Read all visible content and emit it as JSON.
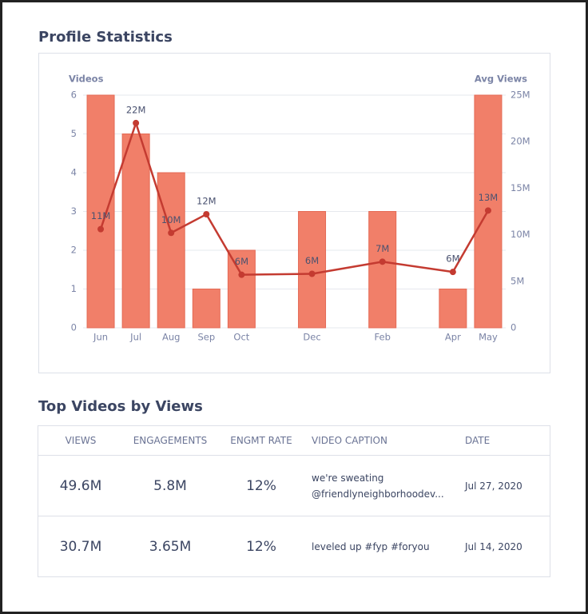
{
  "header": {
    "title": "Profile Statistics"
  },
  "chart_data": {
    "type": "bar-line",
    "y_label": "Videos",
    "y2_label": "Avg Views",
    "categories": [
      "Jun",
      "Jul",
      "Aug",
      "Sep",
      "Oct",
      null,
      "Dec",
      null,
      "Feb",
      null,
      "Apr",
      "May"
    ],
    "series": [
      {
        "type": "bar",
        "color": "#f17f69",
        "values": [
          6,
          5,
          4,
          1,
          2,
          null,
          3,
          null,
          3,
          null,
          1,
          6
        ]
      },
      {
        "type": "line",
        "axis": "y2",
        "color": "#c43b31",
        "values": [
          10600000,
          22000000,
          10200000,
          12200000,
          5700000,
          null,
          5800000,
          null,
          7100000,
          null,
          6000000,
          12600000
        ],
        "value_labels": [
          "11M",
          "22M",
          "10M",
          "12M",
          "6M",
          null,
          "6M",
          null,
          "7M",
          null,
          "6M",
          "13M"
        ]
      }
    ],
    "ylim": [
      0,
      6
    ],
    "yticks": [
      0,
      1,
      2,
      3,
      4,
      5,
      6
    ],
    "y2lim": [
      0,
      25000000
    ],
    "y2ticks": [
      {
        "value": 0,
        "label": "0"
      },
      {
        "value": 5000000,
        "label": "5M"
      },
      {
        "value": 10000000,
        "label": "10M"
      },
      {
        "value": 15000000,
        "label": "15M"
      },
      {
        "value": 20000000,
        "label": "20M"
      },
      {
        "value": 25000000,
        "label": "25M"
      }
    ],
    "grid": true
  },
  "table": {
    "title": "Top Videos by Views",
    "columns": [
      "VIEWS",
      "ENGAGEMENTS",
      "ENGMT RATE",
      "VIDEO CAPTION",
      "DATE"
    ],
    "rows": [
      [
        "49.6M",
        "5.8M",
        "12%",
        "we're sweating @friendlyneighborhoodev...",
        "Jul 27, 2020"
      ],
      [
        "30.7M",
        "3.65M",
        "12%",
        "leveled up #fyp #foryou",
        "Jul 14, 2020"
      ]
    ]
  }
}
